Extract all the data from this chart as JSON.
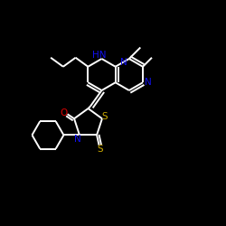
{
  "background_color": "#000000",
  "atom_colors": {
    "N": "#1111ee",
    "NH": "#1111ee",
    "O": "#dd0000",
    "S": "#ccaa00"
  },
  "bond_color": "#ffffff",
  "figsize": [
    2.5,
    2.5
  ],
  "dpi": 100,
  "bond_lw": 1.4
}
